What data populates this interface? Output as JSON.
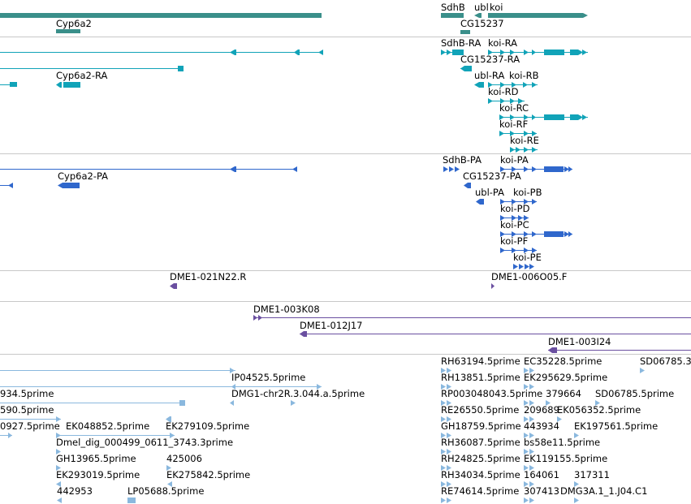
{
  "colors": {
    "gene": "#3a8f8a",
    "mrna": "#11a3b8",
    "protein": "#2f67cc",
    "clone": "#6a4fa0",
    "est": "#8ab8de",
    "divider": "#c8c8c8"
  },
  "tracks": {
    "gene": {
      "labels": [
        "Cyp6a2",
        "SdhB",
        "ubl",
        "koi",
        "CG15237"
      ]
    },
    "mrna": {
      "labels": [
        "SdhB-RA",
        "koi-RA",
        "CG15237-RA",
        "Cyp6a2-RA",
        "ubl-RA",
        "koi-RB",
        "koi-RD",
        "koi-RC",
        "koi-RF",
        "koi-RE"
      ]
    },
    "protein": {
      "labels": [
        "SdhB-PA",
        "koi-PA",
        "Cyp6a2-PA",
        "CG15237-PA",
        "ubl-PA",
        "koi-PB",
        "koi-PD",
        "koi-PC",
        "koi-PF",
        "koi-PE"
      ]
    },
    "clone_ends": {
      "labels": [
        "DME1-021N22.R",
        "DME1-006O05.F"
      ]
    },
    "clones": {
      "labels": [
        "DME1-003K08",
        "DME1-012J17",
        "DME1-003I24"
      ]
    },
    "est": {
      "labels": [
        "RH63194.5prime",
        "EC35228.5prime",
        "SD06785.3",
        "IP04525.5prime",
        "RH13851.5prime",
        "EK295629.5prime",
        "934.5prime",
        "DMG1-chr2R.3.044.a.5prime",
        "RP003048043.5prime",
        "379664",
        "SD06785.5prime",
        "590.5prime",
        "RE26550.5prime",
        "209689",
        "EK056352.5prime",
        "0927.5prime",
        "EK048852.5prime",
        "EK279109.5prime",
        "GH18759.5prime",
        "443934",
        "EK197561.5prime",
        "Dmel_dig_000499_0611_3743.3prime",
        "RH36087.5prime",
        "bs58e11.5prime",
        "GH13965.5prime",
        "425006",
        "RH24825.5prime",
        "EK119155.5prime",
        "EK293019.5prime",
        "EK275842.5prime",
        "RH34034.5prime",
        "164061",
        "317311",
        "442953",
        "LP05688.5prime",
        "RE74614.5prime",
        "307413",
        "DMG3A.1_1.J04.C1"
      ]
    }
  }
}
